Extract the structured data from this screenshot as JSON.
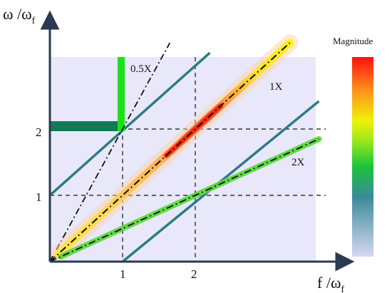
{
  "axes": {
    "y_title_main": "ω /ω",
    "y_title_sub": "f",
    "x_title_main": "f /ω",
    "x_title_sub": "f",
    "x_ticks": [
      "1",
      "2"
    ],
    "y_ticks": [
      "1",
      "2"
    ]
  },
  "orders": {
    "half": "0.5X",
    "one": "1X",
    "two": "2X"
  },
  "legend": {
    "title": "Magnitude",
    "gradient": [
      "#d8d8f4",
      "#3a8a9a",
      "#19c43a",
      "#9ae81a",
      "#f0f00a",
      "#ff9a1a",
      "#ff1010"
    ]
  },
  "colors": {
    "background_panel": "#e8e8fa",
    "axis": "#2a3a52",
    "teal_line": "#2e7a86",
    "green_highlight": "#1ee01a",
    "dark_green": "#137a55",
    "dashdot": "#111111",
    "grid_dashed": "#111111"
  },
  "chart_data": {
    "type": "line",
    "x_domain": [
      0,
      3.7
    ],
    "y_domain": [
      0,
      2.9
    ],
    "grid_x": [
      1,
      2
    ],
    "grid_y": [
      1,
      2
    ],
    "order_lines": [
      {
        "name": "0.5X",
        "slope": 2,
        "x_end": 1.65
      },
      {
        "name": "1X",
        "slope": 1,
        "x_end": 3.3
      },
      {
        "name": "2X",
        "slope": 0.5,
        "x_end": 3.7
      }
    ],
    "resonance_lines": [
      {
        "from": [
          0,
          1
        ],
        "to": [
          2.2,
          3.15
        ]
      },
      {
        "from": [
          1,
          0
        ],
        "to": [
          3.7,
          2.42
        ]
      }
    ]
  }
}
